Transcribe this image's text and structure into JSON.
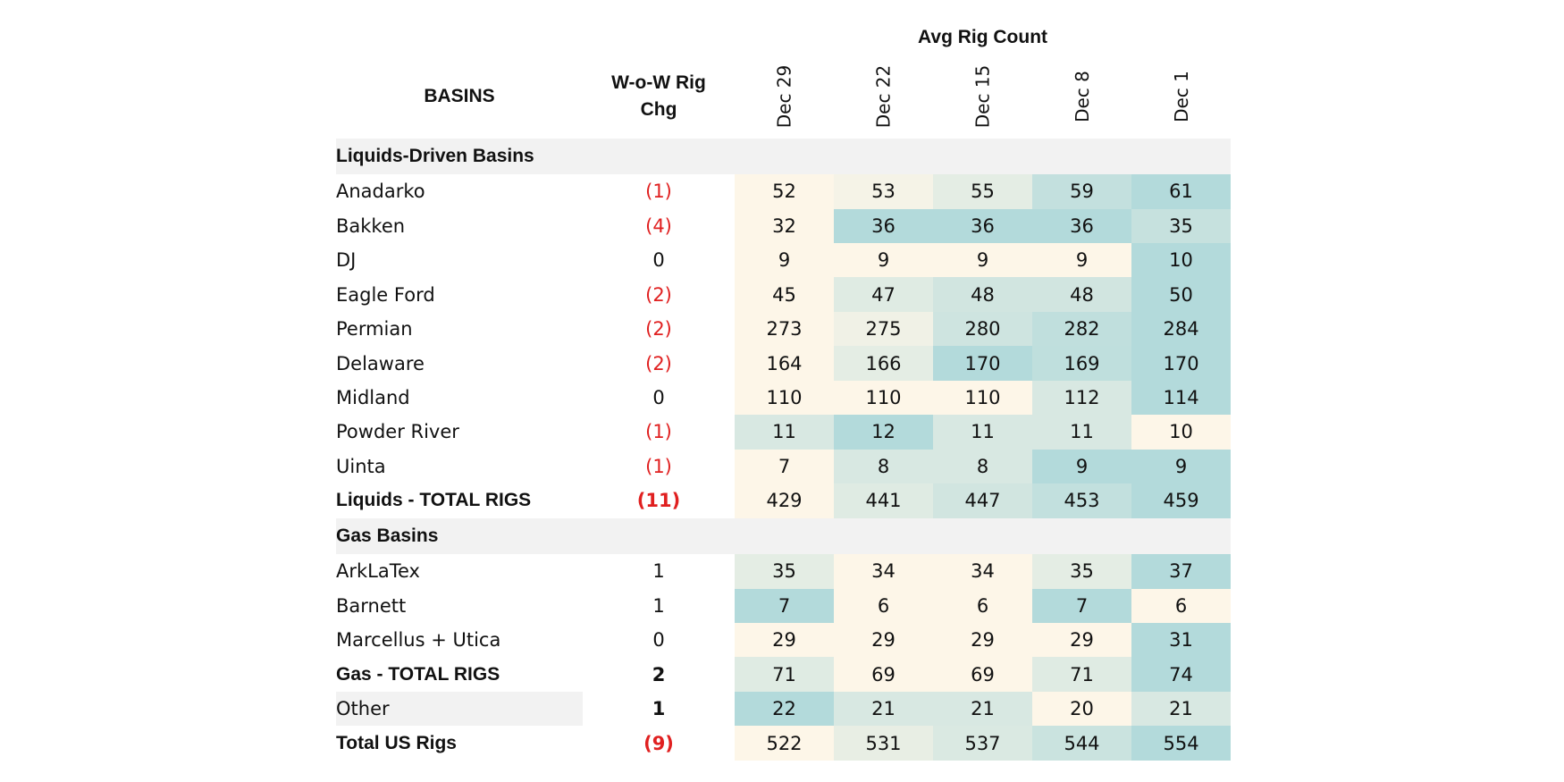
{
  "header": {
    "title": "Avg Rig Count",
    "basins_label": "BASINS",
    "change_label_line1": "W-o-W Rig",
    "change_label_line2": "Chg",
    "weeks": [
      "Dec 29",
      "Dec 22",
      "Dec 15",
      "Dec 8",
      "Dec 1"
    ]
  },
  "colors": {
    "negative_text": "#e02020",
    "heat_low": "#fdf6e8",
    "heat_high": "#b3dadb",
    "section_background": "#f2f2f2"
  },
  "sections": [
    {
      "title": "Liquids-Driven Basins",
      "rows": [
        {
          "name": "Anadarko",
          "indent": false,
          "change": "(1)",
          "negative": true,
          "values": [
            52,
            53,
            55,
            59,
            61
          ]
        },
        {
          "name": "Bakken",
          "indent": false,
          "change": "(4)",
          "negative": true,
          "values": [
            32,
            36,
            36,
            36,
            35
          ]
        },
        {
          "name": "DJ",
          "indent": false,
          "change": "0",
          "negative": false,
          "values": [
            9,
            9,
            9,
            9,
            10
          ]
        },
        {
          "name": "Eagle Ford",
          "indent": false,
          "change": "(2)",
          "negative": true,
          "values": [
            45,
            47,
            48,
            48,
            50
          ]
        },
        {
          "name": "Permian",
          "indent": false,
          "change": "(2)",
          "negative": true,
          "values": [
            273,
            275,
            280,
            282,
            284
          ]
        },
        {
          "name": "Delaware",
          "indent": true,
          "change": "(2)",
          "negative": true,
          "values": [
            164,
            166,
            170,
            169,
            170
          ]
        },
        {
          "name": "Midland",
          "indent": true,
          "change": "0",
          "negative": false,
          "values": [
            110,
            110,
            110,
            112,
            114
          ]
        },
        {
          "name": "Powder River",
          "indent": false,
          "change": "(1)",
          "negative": true,
          "values": [
            11,
            12,
            11,
            11,
            10
          ]
        },
        {
          "name": "Uinta",
          "indent": false,
          "change": "(1)",
          "negative": true,
          "values": [
            7,
            8,
            8,
            9,
            9
          ]
        }
      ],
      "total": {
        "name": "Liquids - TOTAL RIGS",
        "change": "(11)",
        "negative": true,
        "values": [
          429,
          441,
          447,
          453,
          459
        ]
      }
    },
    {
      "title": "Gas Basins",
      "rows": [
        {
          "name": "ArkLaTex",
          "indent": true,
          "change": "1",
          "negative": false,
          "values": [
            35,
            34,
            34,
            35,
            37
          ]
        },
        {
          "name": "Barnett",
          "indent": true,
          "change": "1",
          "negative": false,
          "values": [
            7,
            6,
            6,
            7,
            6
          ]
        },
        {
          "name": "Marcellus + Utica",
          "indent": true,
          "change": "0",
          "negative": false,
          "values": [
            29,
            29,
            29,
            29,
            31
          ]
        }
      ],
      "total": {
        "name": "Gas - TOTAL RIGS",
        "change": "2",
        "negative": false,
        "values": [
          71,
          69,
          69,
          71,
          74
        ]
      }
    }
  ],
  "other": {
    "name": "Other",
    "change": "1",
    "negative": false,
    "values": [
      22,
      21,
      21,
      20,
      21
    ]
  },
  "grand_total": {
    "name": "Total US Rigs",
    "change": "(9)",
    "negative": true,
    "values": [
      522,
      531,
      537,
      544,
      554
    ]
  }
}
